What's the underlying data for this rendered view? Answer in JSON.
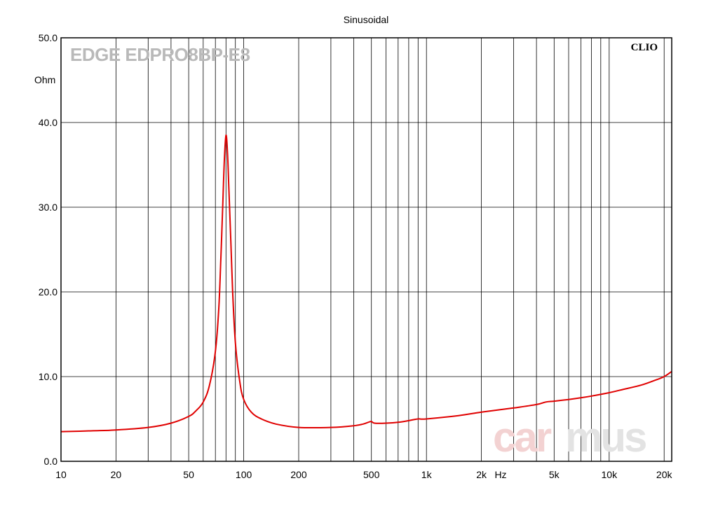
{
  "chart_data": {
    "type": "line",
    "title": "Sinusoidal",
    "product_label": "EDGE EDPRO8BP-E8",
    "brand_label": "CLIO",
    "watermark": [
      "car",
      "mus"
    ],
    "xlabel": "Hz",
    "ylabel": "Ohm",
    "xscale": "log",
    "xlim": [
      10,
      22000
    ],
    "ylim": [
      0,
      50
    ],
    "grid": true,
    "x_ticks": [
      {
        "v": 10,
        "label": "10"
      },
      {
        "v": 20,
        "label": "20"
      },
      {
        "v": 50,
        "label": "50"
      },
      {
        "v": 100,
        "label": "100"
      },
      {
        "v": 200,
        "label": "200"
      },
      {
        "v": 500,
        "label": "500"
      },
      {
        "v": 1000,
        "label": "1k"
      },
      {
        "v": 2000,
        "label": "2k"
      },
      {
        "v": 5000,
        "label": "5k"
      },
      {
        "v": 10000,
        "label": "10k"
      },
      {
        "v": 20000,
        "label": "20k"
      }
    ],
    "y_ticks": [
      {
        "v": 0,
        "label": "0.0"
      },
      {
        "v": 10,
        "label": "10.0"
      },
      {
        "v": 20,
        "label": "20.0"
      },
      {
        "v": 30,
        "label": "30.0"
      },
      {
        "v": 40,
        "label": "40.0"
      },
      {
        "v": 50,
        "label": "50.0"
      }
    ],
    "series": [
      {
        "color": "#e00000",
        "points": [
          [
            10,
            3.5
          ],
          [
            15,
            3.6
          ],
          [
            20,
            3.7
          ],
          [
            30,
            4.0
          ],
          [
            40,
            4.5
          ],
          [
            50,
            5.3
          ],
          [
            55,
            6.0
          ],
          [
            60,
            7.0
          ],
          [
            65,
            9.0
          ],
          [
            70,
            13.0
          ],
          [
            73,
            18.0
          ],
          [
            75,
            24.0
          ],
          [
            77,
            31.0
          ],
          [
            78.5,
            36.0
          ],
          [
            80,
            38.5
          ],
          [
            81.5,
            36.5
          ],
          [
            83,
            32.0
          ],
          [
            85,
            26.0
          ],
          [
            87,
            20.0
          ],
          [
            90,
            14.0
          ],
          [
            95,
            9.5
          ],
          [
            100,
            7.3
          ],
          [
            110,
            5.8
          ],
          [
            125,
            5.0
          ],
          [
            150,
            4.4
          ],
          [
            200,
            4.0
          ],
          [
            300,
            4.0
          ],
          [
            400,
            4.2
          ],
          [
            450,
            4.4
          ],
          [
            480,
            4.6
          ],
          [
            500,
            4.7
          ],
          [
            520,
            4.5
          ],
          [
            600,
            4.5
          ],
          [
            700,
            4.6
          ],
          [
            800,
            4.8
          ],
          [
            900,
            5.0
          ],
          [
            1000,
            5.0
          ],
          [
            1500,
            5.4
          ],
          [
            2000,
            5.8
          ],
          [
            3000,
            6.3
          ],
          [
            4000,
            6.7
          ],
          [
            4500,
            7.0
          ],
          [
            5000,
            7.1
          ],
          [
            6000,
            7.3
          ],
          [
            7000,
            7.5
          ],
          [
            8000,
            7.7
          ],
          [
            10000,
            8.1
          ],
          [
            12000,
            8.5
          ],
          [
            15000,
            9.0
          ],
          [
            18000,
            9.6
          ],
          [
            20000,
            10.0
          ],
          [
            22000,
            10.6
          ]
        ]
      }
    ]
  }
}
